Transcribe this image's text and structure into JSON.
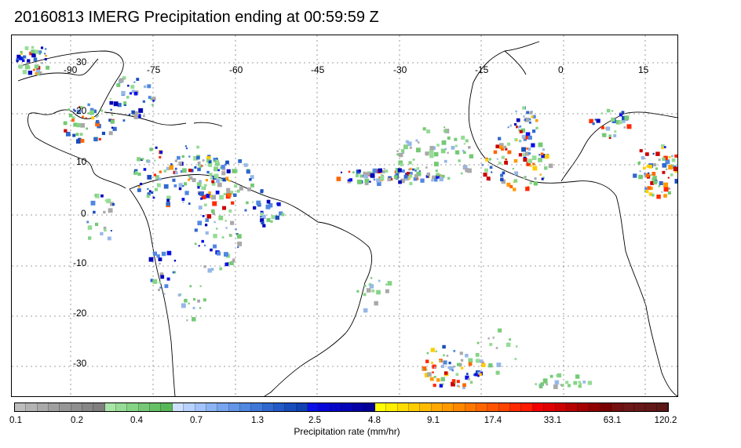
{
  "title": "20160813 IMERG Precipitation ending at 00:59:59 Z",
  "map": {
    "lon_labels": [
      "-90",
      "-75",
      "-60",
      "-45",
      "-30",
      "-15",
      "0",
      "15"
    ],
    "lat_labels": [
      "30",
      "20",
      "10",
      "0",
      "-10",
      "-20",
      "-30"
    ],
    "grid_color": "#808080",
    "land_outline_color": "#000000"
  },
  "colorbar": {
    "label": "Precipitation rate (mm/hr)",
    "ticks": [
      "0.1",
      "0.2",
      "0.4",
      "0.7",
      "1.3",
      "2.5",
      "4.8",
      "9.1",
      "17.4",
      "33.1",
      "63.1",
      "120.2"
    ],
    "colors": [
      "#bdbdbd",
      "#b3b3b3",
      "#a9a9a9",
      "#a0a0a0",
      "#979797",
      "#8e8e8e",
      "#868686",
      "#7f7f7f",
      "#a8e6a8",
      "#96dc96",
      "#85d385",
      "#75c975",
      "#66c066",
      "#59b759",
      "#cfe0ff",
      "#b8d2ff",
      "#a2c3fb",
      "#8cb4f5",
      "#77a5ef",
      "#6396e8",
      "#5087e0",
      "#3f78d8",
      "#3068cf",
      "#235ac6",
      "#184dbd",
      "#0f41b3",
      "#0a10e6",
      "#0808d8",
      "#0606c8",
      "#0404b8",
      "#0303a8",
      "#020298",
      "#ffff00",
      "#ffee00",
      "#ffdd00",
      "#ffcc00",
      "#ffbb00",
      "#ffa800",
      "#ff9900",
      "#ff8800",
      "#ff7700",
      "#ff6600",
      "#ff5500",
      "#ff4400",
      "#ff2a00",
      "#ff1a00",
      "#f20000",
      "#e00000",
      "#cc0000",
      "#b80000",
      "#a40000",
      "#900000",
      "#7a0000",
      "#741010",
      "#6e1818",
      "#681818",
      "#621818",
      "#5c1818"
    ]
  }
}
